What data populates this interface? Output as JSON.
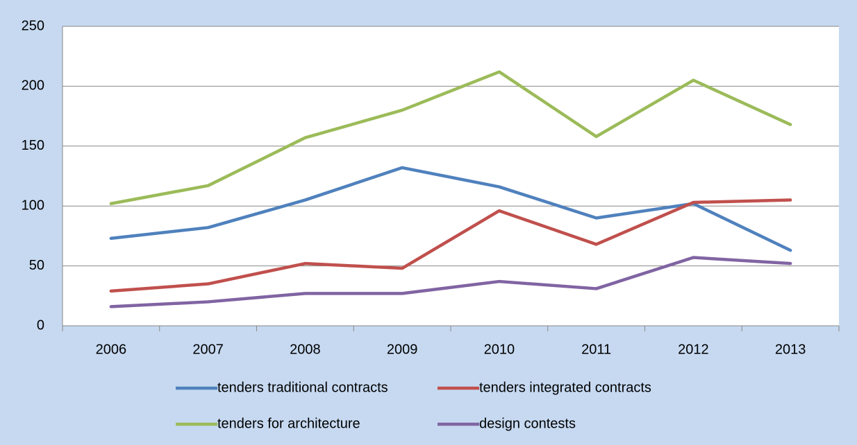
{
  "chart_data": {
    "type": "line",
    "categories": [
      "2006",
      "2007",
      "2008",
      "2009",
      "2010",
      "2011",
      "2012",
      "2013"
    ],
    "series": [
      {
        "name": "tenders traditional contracts",
        "color": "#4f81bd",
        "values": [
          73,
          82,
          105,
          132,
          116,
          90,
          102,
          63
        ]
      },
      {
        "name": "tenders integrated contracts",
        "color": "#c0504d",
        "values": [
          29,
          35,
          52,
          48,
          96,
          68,
          103,
          105
        ]
      },
      {
        "name": "tenders for architecture",
        "color": "#9bbb59",
        "values": [
          102,
          117,
          157,
          180,
          212,
          158,
          205,
          168
        ]
      },
      {
        "name": "design contests",
        "color": "#8064a2",
        "values": [
          16,
          20,
          27,
          27,
          37,
          31,
          57,
          52
        ]
      }
    ],
    "ylim": [
      0,
      250
    ],
    "yticks": [
      0,
      50,
      100,
      150,
      200,
      250
    ],
    "grid": true,
    "legend": "bottom"
  }
}
